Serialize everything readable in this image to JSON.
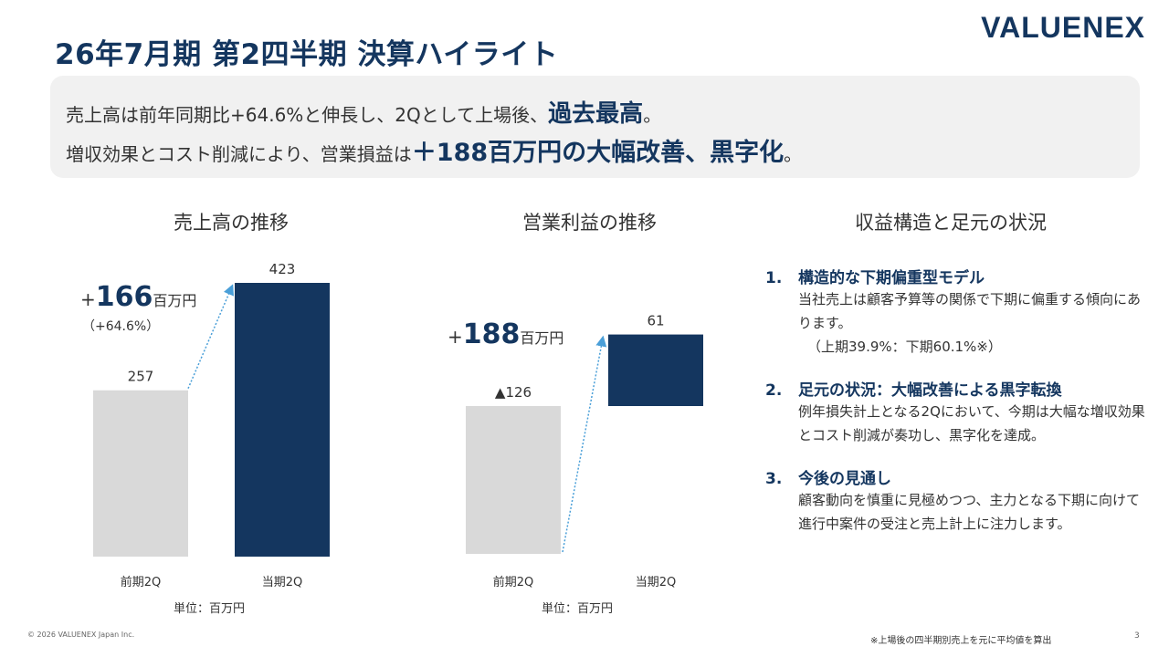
{
  "header": {
    "title": "26年7月期 第2四半期 決算ハイライト",
    "logo_text": "VALUENEX"
  },
  "highlight": {
    "line1_prefix": "売上高は前年同期比+64.6%と伸長し、2Qとして上場後、",
    "line1_em": "過去最高",
    "line1_suffix": "。",
    "line2_prefix": "増収効果とコスト削減により、営業損益は",
    "line2_em": "＋188百万円の大幅改善、黒字化",
    "line2_suffix": "。"
  },
  "sections": {
    "sales_title": "売上高の推移",
    "profit_title": "営業利益の推移",
    "structure_title": "収益構造と足元の状況"
  },
  "sales_delta": {
    "plus": "+",
    "number": "166",
    "unit": "百万円",
    "percent": "（+64.6%）"
  },
  "profit_delta": {
    "plus": "+",
    "number": "188",
    "unit": "百万円"
  },
  "unit_note": "単位：百万円",
  "chart_data": [
    {
      "type": "bar",
      "title": "売上高の推移",
      "categories": [
        "前期2Q",
        "当期2Q"
      ],
      "values": [
        257,
        423
      ],
      "value_labels": [
        "257",
        "423"
      ],
      "colors": [
        "#d9d9d9",
        "#14365f"
      ],
      "ylim": [
        0,
        423
      ],
      "unit": "百万円"
    },
    {
      "type": "bar",
      "title": "営業利益の推移",
      "categories": [
        "前期2Q",
        "当期2Q"
      ],
      "values": [
        -126,
        61
      ],
      "value_labels": [
        "▲126",
        "61"
      ],
      "colors": [
        "#d9d9d9",
        "#14365f"
      ],
      "ylim": [
        -126,
        61
      ],
      "unit": "百万円"
    }
  ],
  "points": [
    {
      "no": "1.",
      "heading": "構造的な下期偏重型モデル",
      "body": "当社売上は顧客予算等の関係で下期に偏重する傾向にあります。",
      "note": "（上期39.9%：下期60.1%※）"
    },
    {
      "no": "2.",
      "heading": "足元の状況：大幅改善による黒字転換",
      "body": "例年損失計上となる2Qにおいて、今期は大幅な増収効果とコスト削減が奏功し、黒字化を達成。"
    },
    {
      "no": "3.",
      "heading": "今後の見通し",
      "body": "顧客動向を慎重に見極めつつ、主力となる下期に向けて進行中案件の受注と売上計上に注力します。"
    }
  ],
  "footer": {
    "copyright": "© 2026 VALUENEX Japan Inc.",
    "note": "※上場後の四半期別売上を元に平均値を算出",
    "page": "3"
  }
}
